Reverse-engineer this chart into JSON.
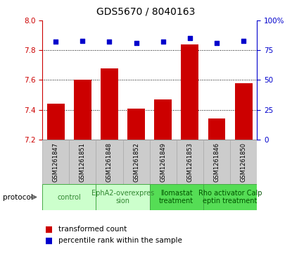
{
  "title": "GDS5670 / 8040163",
  "samples": [
    "GSM1261847",
    "GSM1261851",
    "GSM1261848",
    "GSM1261852",
    "GSM1261849",
    "GSM1261853",
    "GSM1261846",
    "GSM1261850"
  ],
  "bar_values": [
    7.44,
    7.6,
    7.68,
    7.41,
    7.47,
    7.84,
    7.34,
    7.58
  ],
  "percentile_values": [
    82,
    83,
    82,
    81,
    82,
    85,
    81,
    83
  ],
  "ylim_left": [
    7.2,
    8.0
  ],
  "ylim_right": [
    0,
    100
  ],
  "yticks_left": [
    7.2,
    7.4,
    7.6,
    7.8,
    8.0
  ],
  "yticks_right": [
    0,
    25,
    50,
    75,
    100
  ],
  "bar_color": "#cc0000",
  "scatter_color": "#0000cc",
  "bar_width": 0.65,
  "protocols": [
    {
      "label": "control",
      "samples": [
        0,
        1
      ],
      "color": "#ccffcc",
      "text_color": "#338833"
    },
    {
      "label": "EphA2-overexpres\nsion",
      "samples": [
        2,
        3
      ],
      "color": "#ccffcc",
      "text_color": "#338833"
    },
    {
      "label": "llomastat\ntreatment",
      "samples": [
        4,
        5
      ],
      "color": "#55dd55",
      "text_color": "#005500"
    },
    {
      "label": "Rho activator Calp\neptin treatment",
      "samples": [
        6,
        7
      ],
      "color": "#55dd55",
      "text_color": "#005500"
    }
  ],
  "ytick_gridlines": [
    7.4,
    7.6,
    7.8
  ],
  "bar_color_red": "#cc0000",
  "scatter_color_blue": "#0000cc",
  "title_fontsize": 10,
  "tick_fontsize": 7.5,
  "sample_fontsize": 6,
  "proto_fontsize": 7,
  "legend_fontsize": 7.5,
  "sample_bg_color": "#cccccc",
  "sample_edge_color": "#aaaaaa"
}
